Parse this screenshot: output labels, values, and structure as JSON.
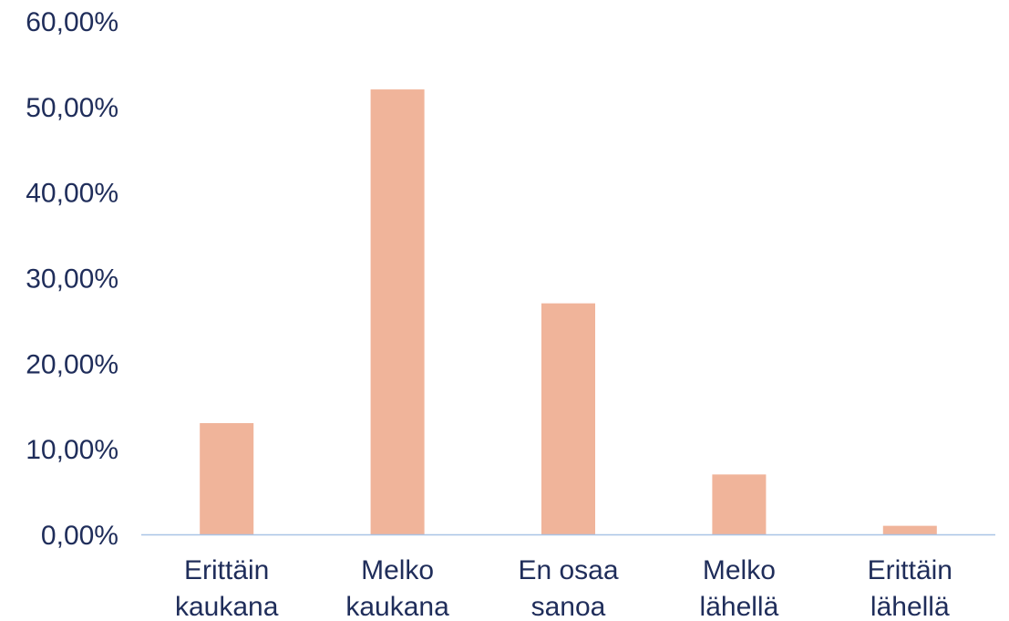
{
  "chart_data": {
    "type": "bar",
    "categories": [
      [
        "Erittäin",
        "kaukana"
      ],
      [
        "Melko",
        "kaukana"
      ],
      [
        "En osaa",
        "sanoa"
      ],
      [
        "Melko",
        "lähellä"
      ],
      [
        "Erittäin",
        "lähellä"
      ]
    ],
    "values": [
      13,
      52,
      27,
      7,
      1
    ],
    "y_tick_labels": [
      "0,00%",
      "10,00%",
      "20,00%",
      "30,00%",
      "40,00%",
      "50,00%",
      "60,00%"
    ],
    "y_ticks": [
      0,
      10,
      20,
      30,
      40,
      50,
      60
    ],
    "ylim": [
      0,
      60
    ],
    "grid": false,
    "legend": "none",
    "bar_color": "#f0b49a",
    "axis_color": "#a9c4e6",
    "label_color": "#1f2d5a"
  }
}
